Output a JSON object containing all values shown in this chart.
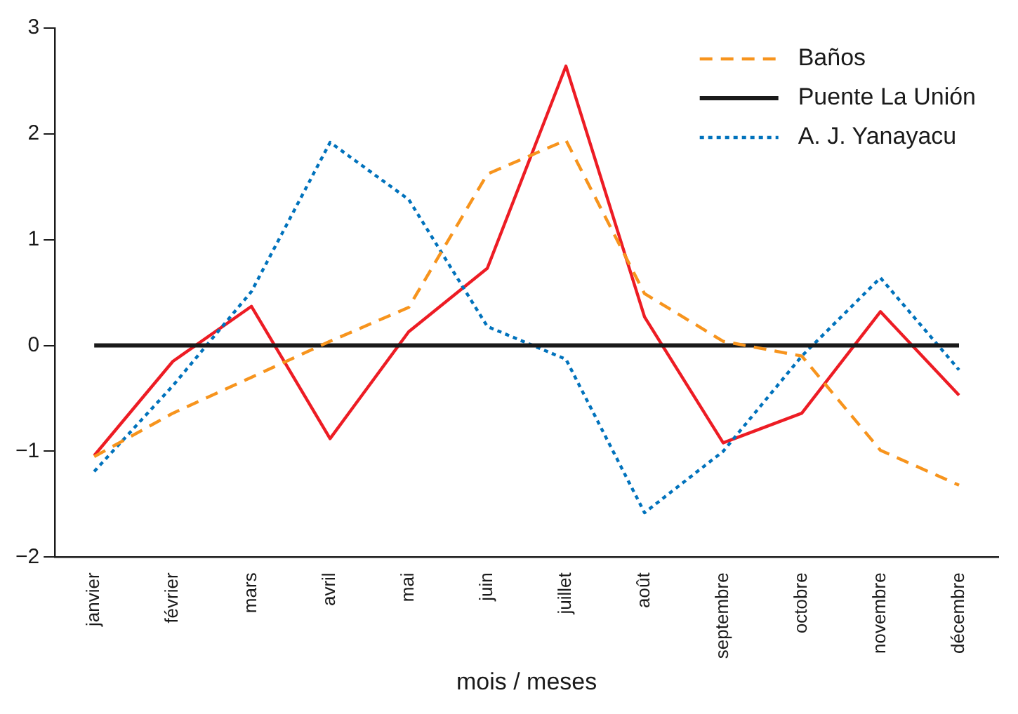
{
  "chart_data": {
    "type": "line",
    "xlabel": "mois / meses",
    "categories": [
      "janvier",
      "février",
      "mars",
      "avril",
      "mai",
      "juin",
      "juillet",
      "août",
      "septembre",
      "octobre",
      "novembre",
      "décembre"
    ],
    "series": [
      {
        "name": "Baños",
        "color": "#f7941d",
        "line_style": "dashed",
        "values": [
          -1.05,
          -0.64,
          -0.3,
          0.04,
          0.36,
          1.62,
          1.94,
          0.49,
          0.04,
          -0.1,
          -0.99,
          -1.32
        ]
      },
      {
        "name": "Puente La Unión",
        "color": "#1a1a1a",
        "line_style": "solid",
        "values": [
          0,
          0,
          0,
          0,
          0,
          0,
          0,
          0,
          0,
          0,
          0,
          0
        ]
      },
      {
        "name": "A. J. Yanayacu",
        "color": "#0072bc",
        "line_style": "dotted",
        "values": [
          -1.19,
          -0.38,
          0.51,
          1.92,
          1.38,
          0.18,
          -0.13,
          -1.58,
          -1.0,
          -0.1,
          0.64,
          -0.23
        ]
      },
      {
        "color": "#ed1c24",
        "line_style": "solid",
        "values": [
          -1.04,
          -0.15,
          0.37,
          -0.88,
          0.13,
          0.73,
          2.64,
          0.27,
          -0.92,
          -0.64,
          0.32,
          -0.47
        ]
      }
    ],
    "ylim": [
      -2,
      3
    ],
    "yticks": [
      -2,
      -1,
      0,
      1,
      2,
      3
    ],
    "grid": false,
    "legend": "top right",
    "marker": "none"
  }
}
